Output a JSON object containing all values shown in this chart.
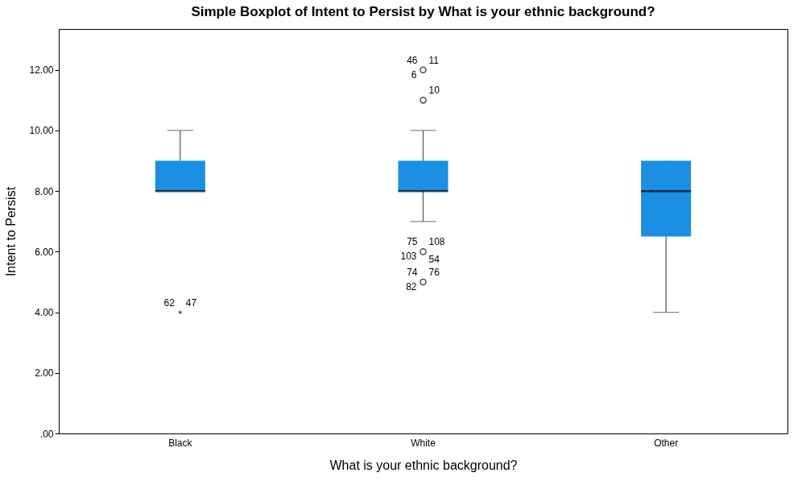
{
  "chart_data": {
    "type": "box",
    "title": "Simple Boxplot of Intent to Persist by What is your ethnic background?",
    "xlabel": "What is your ethnic background?",
    "ylabel": "Intent to Persist",
    "categories": [
      "Black",
      "White",
      "Other"
    ],
    "ylim": [
      0,
      13.35
    ],
    "yticks": [
      {
        "value": 0,
        "label": ".00"
      },
      {
        "value": 2,
        "label": "2.00"
      },
      {
        "value": 4,
        "label": "4.00"
      },
      {
        "value": 6,
        "label": "6.00"
      },
      {
        "value": 8,
        "label": "8.00"
      },
      {
        "value": 10,
        "label": "10.00"
      },
      {
        "value": 12,
        "label": "12.00"
      }
    ],
    "grid": false,
    "series": [
      {
        "color": "#1a8fe3",
        "boxes": [
          {
            "low": 8,
            "q1": 8,
            "median": 8,
            "q3": 9,
            "high": 10
          },
          {
            "low": 7,
            "q1": 8,
            "median": 8,
            "q3": 9,
            "high": 10
          },
          {
            "low": 4,
            "q1": 6.5,
            "median": 8,
            "q3": 9,
            "high": 9
          }
        ]
      },
      {
        "type": "scatter",
        "marker": "circle",
        "color": "#000000",
        "x": [
          "White",
          "White",
          "White",
          "White"
        ],
        "values": [
          12,
          11,
          6,
          5
        ]
      },
      {
        "type": "scatter",
        "marker": "star",
        "color": "#000000",
        "x": [
          "Black"
        ],
        "values": [
          4
        ]
      }
    ],
    "annotations": [
      {
        "text": "11",
        "x": "White",
        "y": 12
      },
      {
        "text": "46",
        "x": "White",
        "y": 12
      },
      {
        "text": "6",
        "x": "White",
        "y": 12
      },
      {
        "text": "10",
        "x": "White",
        "y": 11
      },
      {
        "text": "108",
        "x": "White",
        "y": 6
      },
      {
        "text": "75",
        "x": "White",
        "y": 6
      },
      {
        "text": "103",
        "x": "White",
        "y": 6
      },
      {
        "text": "54",
        "x": "White",
        "y": 6
      },
      {
        "text": "76",
        "x": "White",
        "y": 5
      },
      {
        "text": "74",
        "x": "White",
        "y": 5
      },
      {
        "text": "82",
        "x": "White",
        "y": 5
      },
      {
        "text": "47",
        "x": "Black",
        "y": 4
      },
      {
        "text": "62",
        "x": "Black",
        "y": 4
      }
    ]
  }
}
